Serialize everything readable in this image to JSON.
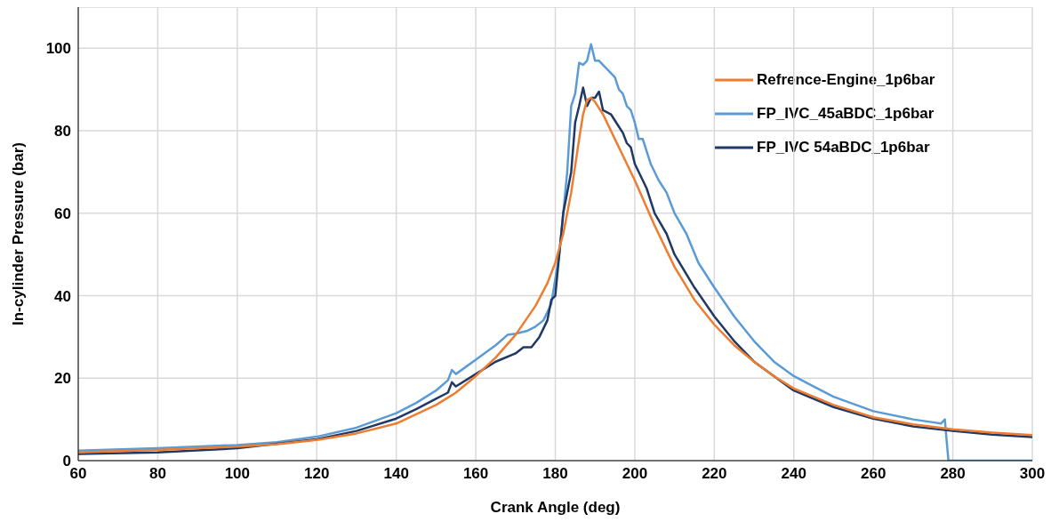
{
  "chart_data": {
    "type": "line",
    "xlabel": "Crank Angle (deg)",
    "ylabel": "In-cylinder Pressure (bar)",
    "xlim": [
      60,
      300
    ],
    "xticks": [
      60,
      80,
      100,
      120,
      140,
      160,
      180,
      200,
      220,
      240,
      260,
      280,
      300
    ],
    "ylim": [
      0,
      110
    ],
    "yticks": [
      0,
      20,
      40,
      60,
      80,
      100
    ],
    "grid": true,
    "legend": "top right",
    "marker": "none",
    "line_style": "solid",
    "series": [
      {
        "name": "Refrence-Engine_1p6bar",
        "color": "#ed7d31",
        "x": [
          60,
          70,
          80,
          90,
          100,
          110,
          120,
          130,
          140,
          150,
          155,
          160,
          165,
          170,
          175,
          178,
          180,
          182,
          184,
          186,
          187,
          188,
          189,
          190,
          192,
          195,
          198,
          200,
          205,
          210,
          215,
          220,
          225,
          230,
          235,
          240,
          250,
          260,
          270,
          280,
          290,
          300
        ],
        "values": [
          2.0,
          2.3,
          2.6,
          3.0,
          3.4,
          4.0,
          5.0,
          6.6,
          9.0,
          13.5,
          16.5,
          20.5,
          25,
          30.5,
          37.5,
          43,
          48,
          55,
          65,
          78,
          84,
          87.5,
          88,
          87,
          84,
          78,
          72,
          68,
          57,
          47,
          39,
          33,
          28,
          24,
          20.5,
          17.5,
          13.5,
          10.5,
          8.8,
          7.6,
          6.8,
          6.2
        ]
      },
      {
        "name": "FP_IVC_45aBDC_1p6bar",
        "color": "#5b9bd5",
        "x": [
          60,
          80,
          100,
          110,
          120,
          130,
          140,
          145,
          150,
          153,
          154,
          155,
          160,
          165,
          168,
          170,
          173,
          175,
          177,
          179,
          181,
          183,
          184,
          185,
          186,
          187,
          188,
          189,
          190,
          191,
          193,
          195,
          196,
          197,
          198,
          199,
          200,
          201,
          202,
          204,
          206,
          208,
          210,
          213,
          216,
          220,
          225,
          230,
          235,
          240,
          245,
          250,
          260,
          270,
          275,
          277,
          278,
          278.3,
          278.9,
          300
        ],
        "values": [
          2.4,
          3.0,
          3.8,
          4.5,
          5.8,
          8.0,
          11.5,
          14,
          17,
          19.5,
          22,
          21,
          24.5,
          28,
          30.5,
          30.8,
          31.5,
          32.5,
          34,
          38,
          50,
          70,
          86,
          89,
          96.5,
          96,
          97,
          101,
          97,
          97,
          95,
          93,
          90,
          89,
          86,
          85,
          82,
          78,
          78,
          72,
          68,
          65,
          60,
          55,
          48,
          42,
          35,
          29,
          24,
          20.5,
          18,
          15.5,
          12,
          10,
          9.3,
          9,
          10,
          6.5,
          0,
          0
        ]
      },
      {
        "name": "FP_IVC 54aBDC_1p6bar",
        "color": "#203864",
        "x": [
          60,
          80,
          100,
          120,
          130,
          140,
          145,
          150,
          153,
          154,
          155,
          160,
          165,
          170,
          172,
          174,
          176,
          178,
          179,
          180,
          181,
          182,
          184,
          185,
          186,
          187,
          188,
          189,
          190,
          191,
          192,
          194,
          196,
          197,
          198,
          199,
          200,
          202,
          203,
          205,
          208,
          210,
          215,
          220,
          225,
          230,
          235,
          240,
          250,
          260,
          270,
          280,
          290,
          300
        ],
        "values": [
          1.6,
          2.0,
          3.0,
          5.2,
          7.2,
          10.2,
          12.5,
          15,
          16.5,
          19,
          18,
          21,
          24,
          26,
          27.5,
          27.5,
          30,
          34,
          39,
          40,
          50,
          60,
          70,
          82,
          86,
          90.5,
          86,
          88,
          88,
          89.5,
          85,
          84,
          81,
          79.5,
          77,
          76,
          72,
          68,
          66,
          60,
          55,
          50,
          42,
          35,
          29,
          24,
          20.5,
          17,
          13,
          10.2,
          8.3,
          7.2,
          6.3,
          5.7
        ]
      }
    ]
  }
}
